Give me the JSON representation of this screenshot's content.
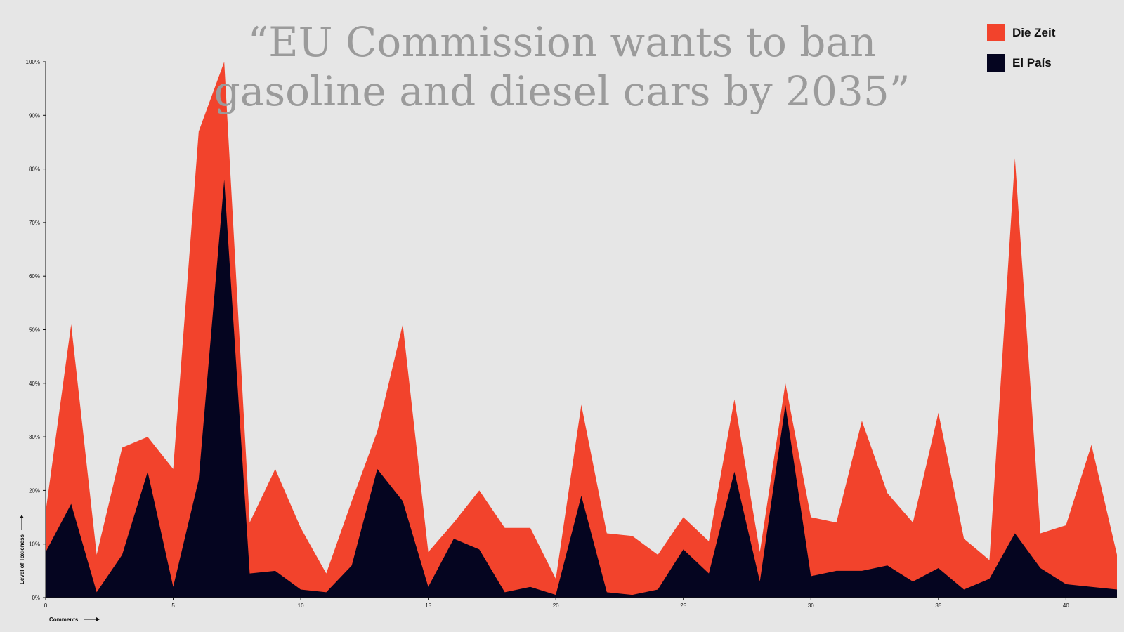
{
  "chart_data": {
    "type": "area",
    "title_lines": [
      "“EU Commission wants to ban",
      "gasoline and diesel cars by 2035”"
    ],
    "xlabel": "Comments",
    "ylabel": "Level of Toxicness",
    "xlim": [
      0,
      42
    ],
    "ylim": [
      0,
      100
    ],
    "x_ticks": [
      0,
      5,
      10,
      15,
      20,
      25,
      30,
      35,
      40
    ],
    "x_tick_labels": [
      "0",
      "5",
      "10",
      "15",
      "20",
      "25",
      "30",
      "35",
      "40"
    ],
    "y_ticks": [
      0,
      10,
      20,
      30,
      40,
      50,
      60,
      70,
      80,
      90,
      100
    ],
    "y_tick_labels": [
      "0%",
      "10%",
      "20%",
      "30%",
      "40%",
      "50%",
      "60%",
      "70%",
      "80%",
      "90%",
      "100%"
    ],
    "legend_position": "top-right",
    "x": [
      0,
      1,
      2,
      3,
      4,
      5,
      6,
      7,
      8,
      9,
      10,
      11,
      12,
      13,
      14,
      15,
      16,
      17,
      18,
      19,
      20,
      21,
      22,
      23,
      24,
      25,
      26,
      27,
      28,
      29,
      30,
      31,
      32,
      33,
      34,
      35,
      36,
      37,
      38,
      39,
      40,
      41,
      42
    ],
    "series": [
      {
        "name": "Die Zeit",
        "color": "#f2432c",
        "values": [
          16,
          51,
          8,
          28,
          30,
          24,
          87,
          100,
          14,
          24,
          13,
          4.5,
          18,
          31,
          51,
          8.5,
          14,
          20,
          13,
          13,
          3.5,
          36,
          12,
          11.5,
          8,
          15,
          10.5,
          37,
          8.5,
          40,
          15,
          14,
          33,
          19.5,
          14,
          34.5,
          11,
          7,
          82,
          12,
          13.5,
          28.5,
          8
        ]
      },
      {
        "name": "El País",
        "color": "#050520",
        "values": [
          8.5,
          17.5,
          1,
          8,
          23.5,
          2,
          22,
          78,
          4.5,
          5,
          1.5,
          1,
          6,
          24,
          18,
          2,
          11,
          9,
          1,
          2,
          0.5,
          19,
          1,
          0.5,
          1.5,
          9,
          4.5,
          23.5,
          3,
          36,
          4,
          5,
          5,
          6,
          3,
          5.5,
          1.5,
          3.5,
          12,
          5.5,
          2.5,
          2,
          1.5
        ]
      }
    ]
  }
}
